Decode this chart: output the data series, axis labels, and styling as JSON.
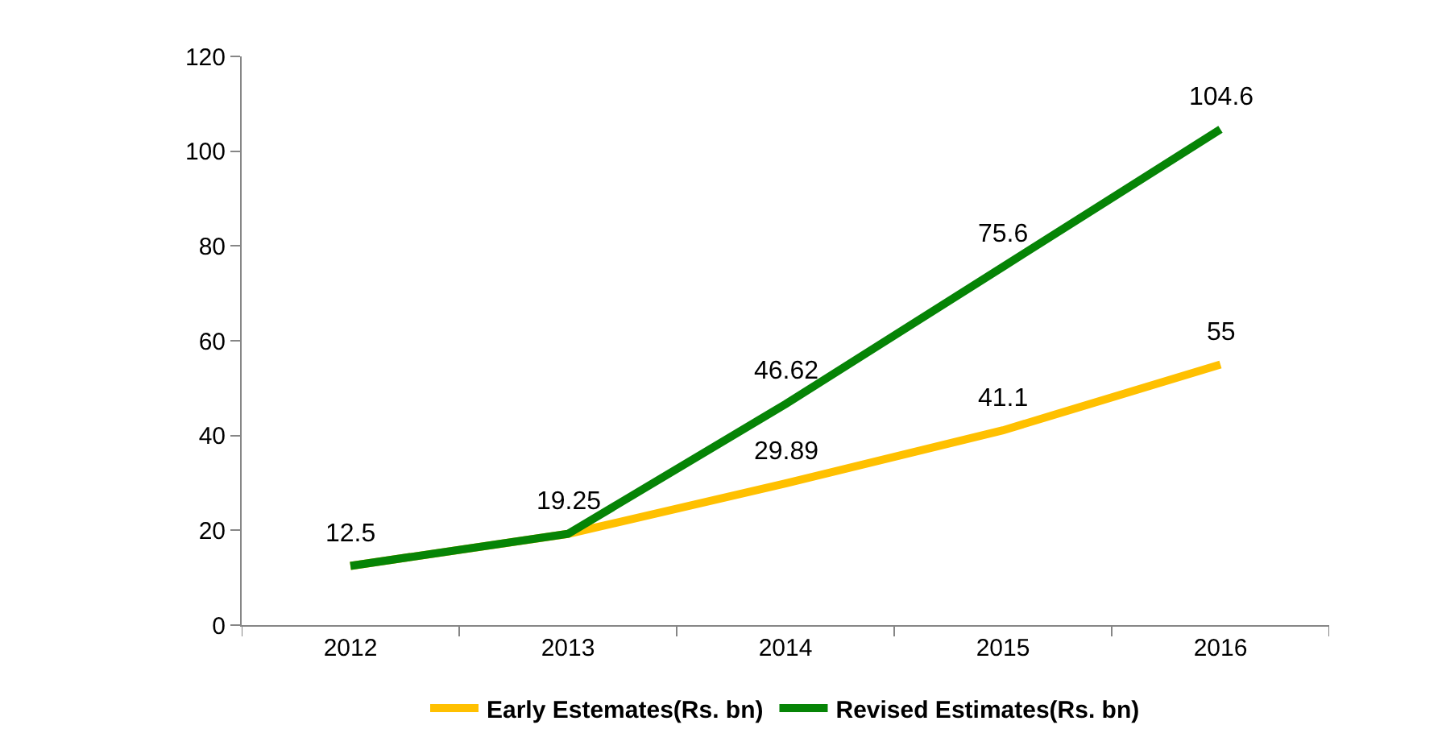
{
  "chart_data": {
    "type": "line",
    "categories": [
      "2012",
      "2013",
      "2014",
      "2015",
      "2016"
    ],
    "series": [
      {
        "name": "Early Estemates(Rs. bn)",
        "color": "#ffc000",
        "values": [
          12.5,
          19.25,
          29.89,
          41.1,
          55
        ],
        "value_labels": [
          null,
          null,
          "29.89",
          "41.1",
          "55"
        ]
      },
      {
        "name": "Revised Estimates(Rs. bn)",
        "color": "#068406",
        "values": [
          12.5,
          19.25,
          46.62,
          75.6,
          104.6
        ],
        "value_labels": [
          "12.5",
          "19.25",
          "46.62",
          "75.6",
          "104.6"
        ]
      }
    ],
    "ylim": [
      0,
      120
    ],
    "yticks": [
      0,
      20,
      40,
      60,
      80,
      100,
      120
    ],
    "legend": "bottom",
    "marker": "none",
    "line_style": "solid"
  }
}
